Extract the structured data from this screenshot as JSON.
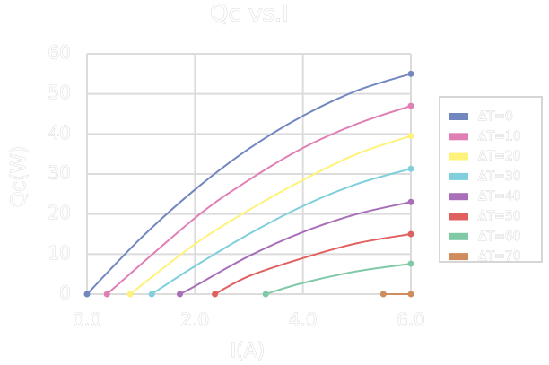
{
  "chart_data": {
    "type": "line",
    "title": "Qc vs.I",
    "xlabel": "I(A)",
    "ylabel": "Qc(W)",
    "xlim": [
      0,
      6
    ],
    "ylim": [
      0,
      60
    ],
    "xticks": [
      {
        "value": 0,
        "label": "0.0"
      },
      {
        "value": 2,
        "label": "2.0"
      },
      {
        "value": 4,
        "label": "4.0"
      },
      {
        "value": 6,
        "label": "6.0"
      }
    ],
    "yticks": [
      0,
      10,
      20,
      30,
      40,
      50,
      60
    ],
    "grid": true,
    "legend": "right",
    "series": [
      {
        "name": "ΔT=0",
        "color": "#7287c0",
        "x": [
          0,
          1,
          2,
          3,
          4,
          5,
          6
        ],
        "values": [
          0,
          14,
          26.1,
          36.3,
          44.5,
          50.8,
          55
        ]
      },
      {
        "name": "ΔT=10",
        "color": "#e07fb5",
        "x": [
          0.37,
          2,
          3,
          4,
          5,
          6
        ],
        "values": [
          0,
          19,
          28.5,
          36.5,
          42.5,
          47
        ]
      },
      {
        "name": "ΔT=20",
        "color": "#fff27a",
        "x": [
          0.8,
          2,
          3,
          4,
          5,
          6
        ],
        "values": [
          0,
          12.5,
          21,
          28.5,
          35,
          39.5
        ]
      },
      {
        "name": "ΔT=30",
        "color": "#7fcfdd",
        "x": [
          1.2,
          2,
          3,
          4,
          5,
          6
        ],
        "values": [
          0,
          7,
          15,
          22,
          27.5,
          31.3
        ]
      },
      {
        "name": "ΔT=40",
        "color": "#a86fb8",
        "x": [
          1.72,
          2,
          3,
          4,
          5,
          6
        ],
        "values": [
          0,
          2,
          9.5,
          15.5,
          20,
          23
        ]
      },
      {
        "name": "ΔT=50",
        "color": "#e06060",
        "x": [
          2.37,
          3,
          4,
          5,
          6
        ],
        "values": [
          0,
          4.5,
          9,
          12.7,
          15
        ]
      },
      {
        "name": "ΔT=60",
        "color": "#80c9a7",
        "x": [
          3.31,
          4,
          5,
          6
        ],
        "values": [
          0,
          2.8,
          5.7,
          7.6
        ]
      },
      {
        "name": "ΔT=70",
        "color": "#cf8c5d",
        "x": [
          5.49,
          6
        ],
        "values": [
          0,
          0
        ]
      }
    ]
  }
}
